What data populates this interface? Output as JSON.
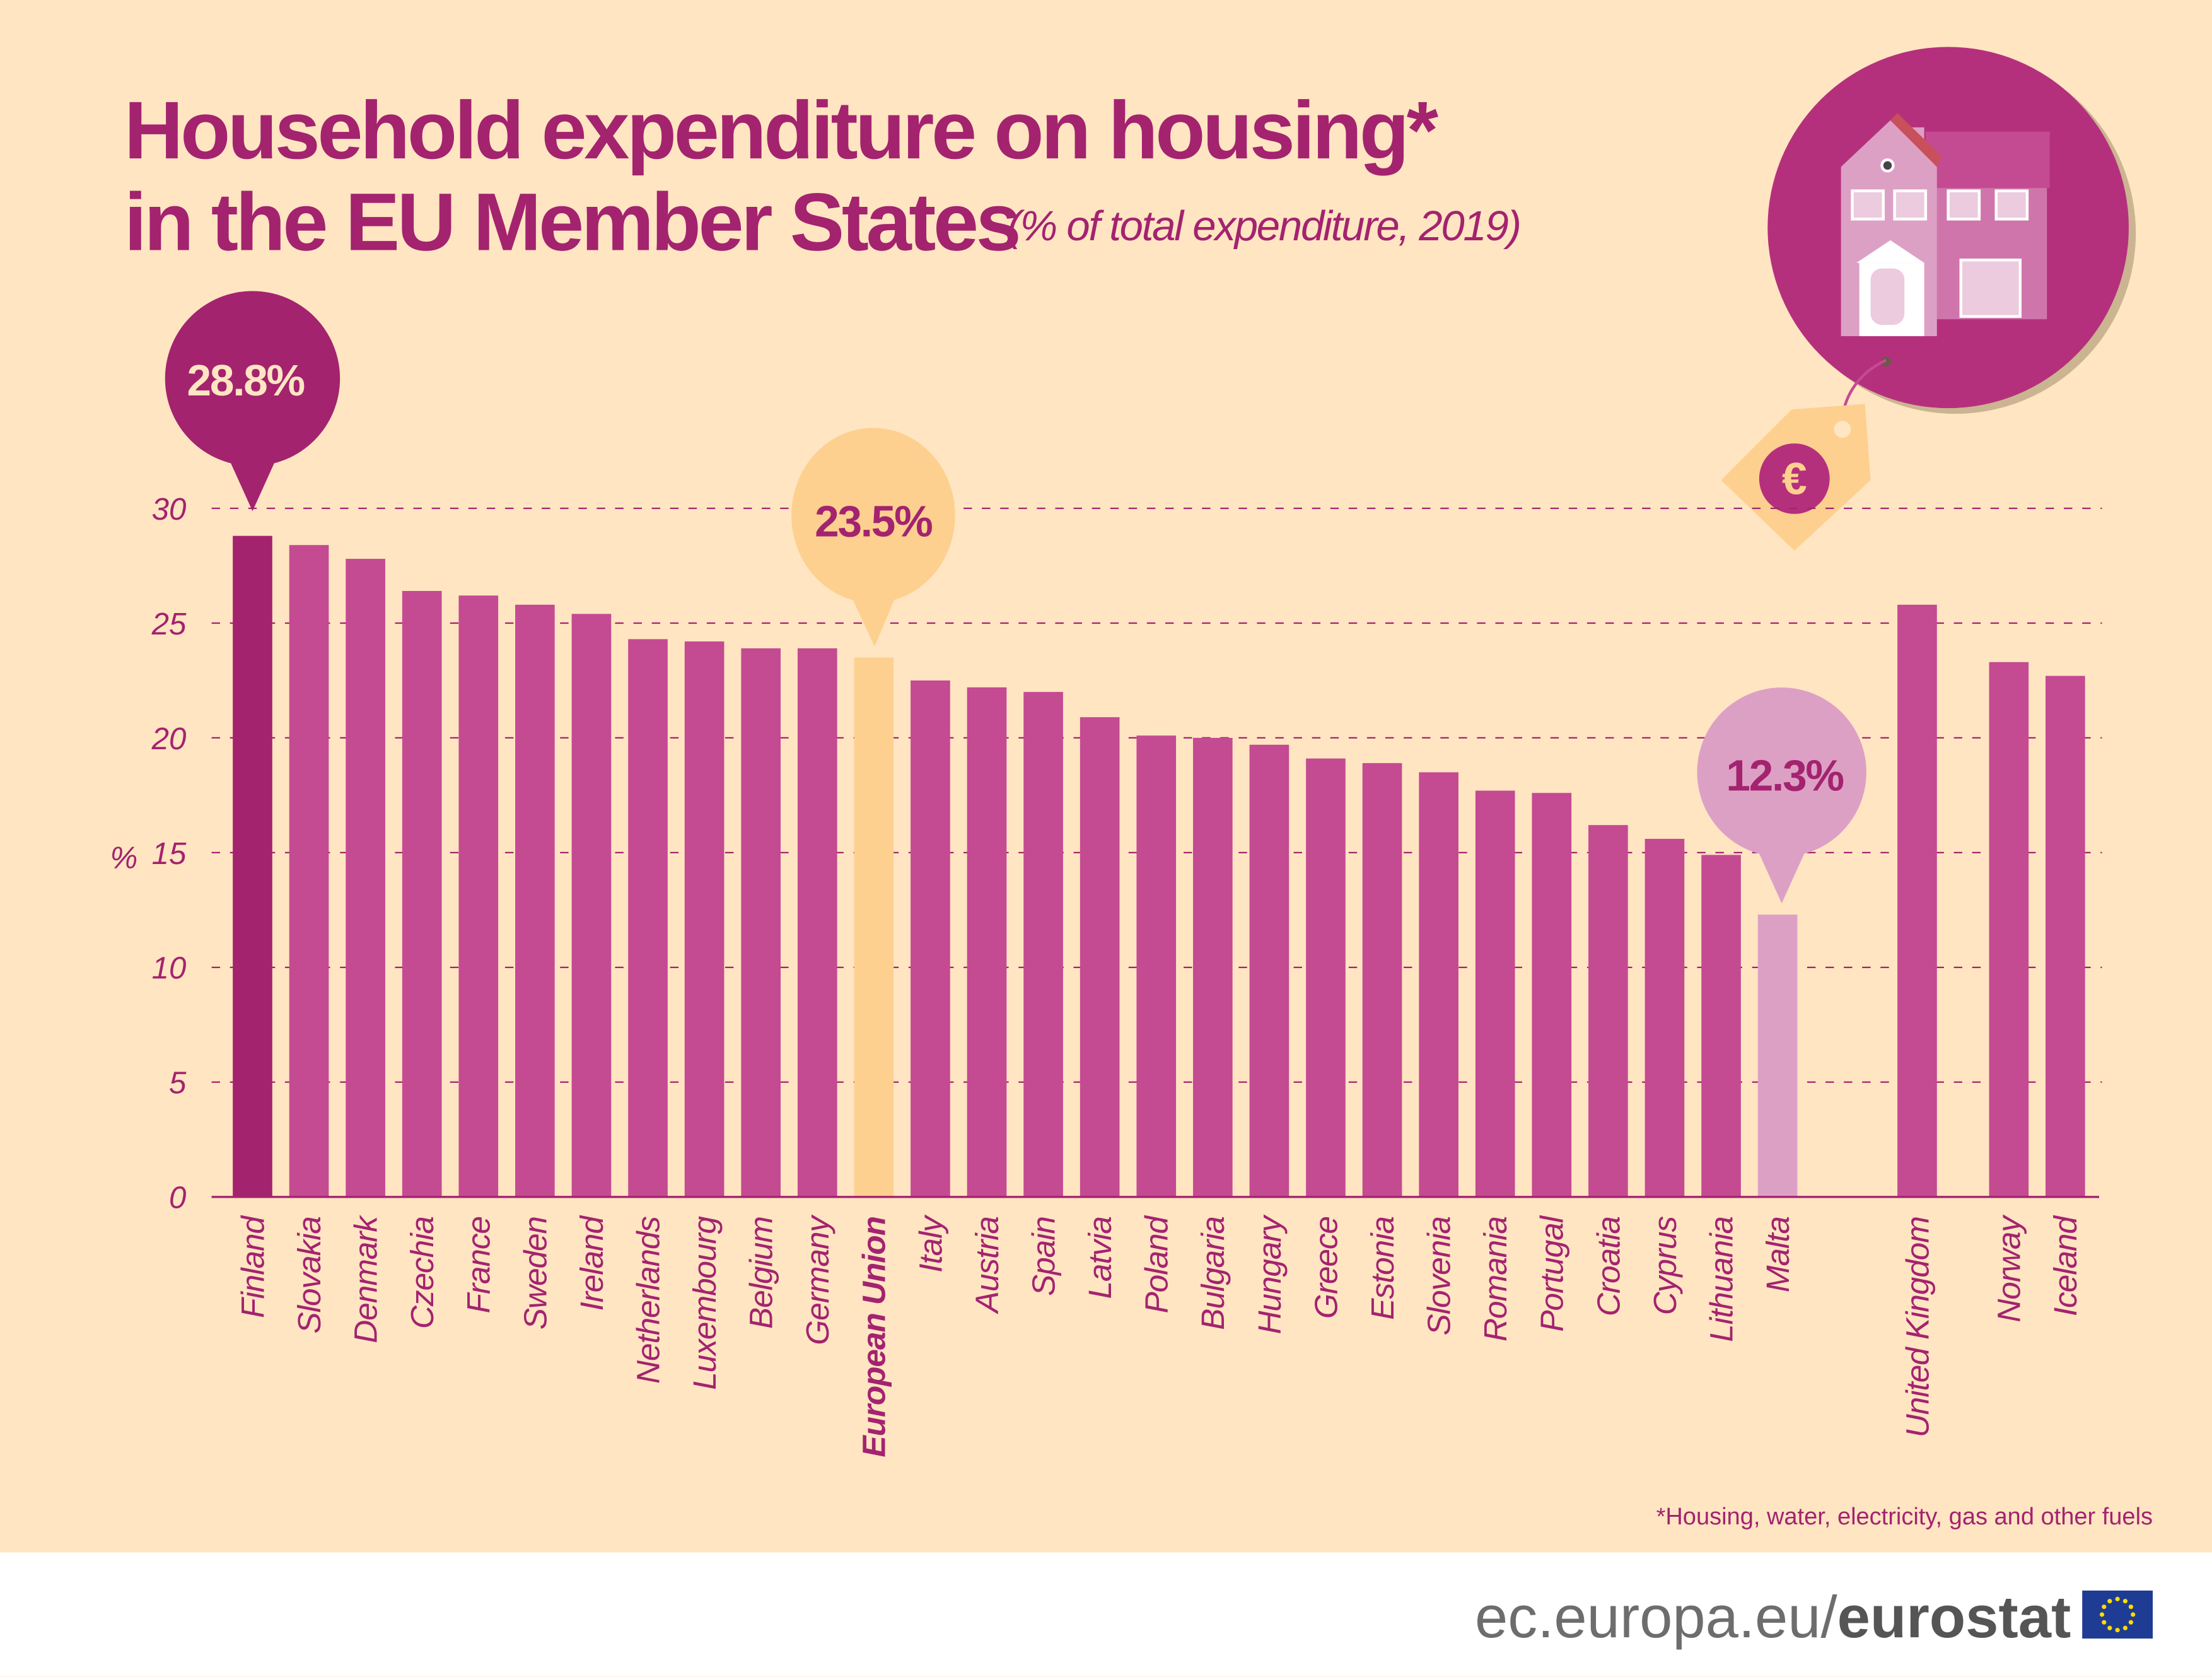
{
  "colors": {
    "background": "#FFE5C2",
    "bar": "#C44A92",
    "highlight_max": "#A3236F",
    "highlight_eu": "#FDD08F",
    "highlight_min": "#DDA0C5",
    "text": "#A3236F"
  },
  "chart_data": {
    "type": "bar",
    "title": "Household expenditure on housing* in the EU Member States",
    "title_line1": "Household expenditure on housing*",
    "title_line2": "in the EU Member States",
    "subtitle": "(% of total expenditure, 2019)",
    "ylabel": "%",
    "ylim": [
      0,
      30
    ],
    "yticks": [
      "0",
      "5",
      "10",
      "15",
      "20",
      "25",
      "30"
    ],
    "grid": true,
    "categories": [
      "Finland",
      "Slovakia",
      "Denmark",
      "Czechia",
      "France",
      "Sweden",
      "Ireland",
      "Netherlands",
      "Luxembourg",
      "Belgium",
      "Germany",
      "European Union",
      "Italy",
      "Austria",
      "Spain",
      "Latvia",
      "Poland",
      "Bulgaria",
      "Hungary",
      "Greece",
      "Estonia",
      "Slovenia",
      "Romania",
      "Portugal",
      "Croatia",
      "Cyprus",
      "Lithuania",
      "Malta",
      "United Kingdom",
      "Norway",
      "Iceland"
    ],
    "values": [
      28.8,
      28.4,
      27.8,
      26.4,
      26.2,
      25.8,
      25.4,
      24.3,
      24.2,
      23.9,
      23.9,
      23.5,
      22.5,
      22.2,
      22.0,
      20.9,
      20.1,
      20.0,
      19.7,
      19.1,
      18.9,
      18.5,
      17.7,
      17.6,
      16.2,
      15.6,
      14.9,
      12.3,
      25.8,
      23.3,
      22.7
    ],
    "callouts": {
      "max": "28.8%",
      "eu": "23.5%",
      "min": "12.3%"
    },
    "footnote": "*Housing, water, electricity, gas and other fuels"
  },
  "footer": {
    "url_prefix": "ec.europa.eu/",
    "brand": "eurostat"
  },
  "icons": {
    "illustration": "house-icon",
    "tag": "euro-price-tag-icon",
    "flag": "eu-flag-icon"
  }
}
